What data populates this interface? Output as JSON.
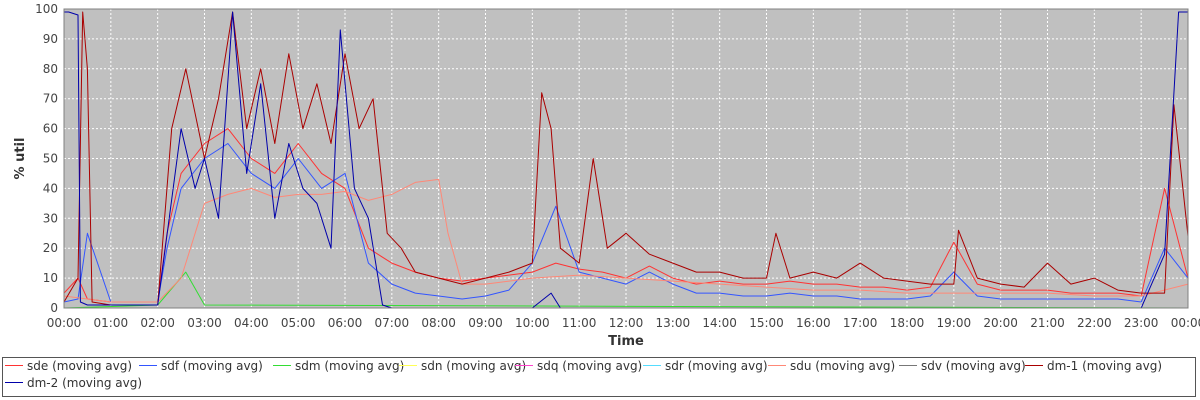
{
  "chart_data": {
    "type": "line",
    "xlabel": "Time",
    "ylabel": "% util",
    "ylim": [
      0,
      100
    ],
    "yticks": [
      0,
      10,
      20,
      30,
      40,
      50,
      60,
      70,
      80,
      90,
      100
    ],
    "xlim": [
      0,
      24
    ],
    "xticks": [
      "00:00",
      "01:00",
      "02:00",
      "03:00",
      "04:00",
      "05:00",
      "06:00",
      "07:00",
      "08:00",
      "09:00",
      "10:00",
      "11:00",
      "12:00",
      "13:00",
      "14:00",
      "15:00",
      "16:00",
      "17:00",
      "18:00",
      "19:00",
      "20:00",
      "21:00",
      "22:00",
      "23:00",
      "00:00"
    ],
    "grid": true,
    "legend_position": "bottom",
    "background": "#c0c0c0",
    "series": [
      {
        "name": "sde (moving avg)",
        "color": "#ff3333",
        "x": [
          0,
          0.3,
          0.5,
          1,
          2,
          2.2,
          2.5,
          3,
          3.5,
          4,
          4.5,
          5,
          5.5,
          6,
          6.5,
          7,
          7.5,
          8,
          8.5,
          9,
          9.5,
          10,
          10.5,
          11,
          11.5,
          12,
          12.5,
          13,
          13.5,
          14,
          14.5,
          15,
          15.5,
          16,
          16.5,
          17,
          17.5,
          18,
          18.5,
          19,
          19.5,
          20,
          20.5,
          21,
          21.5,
          22,
          22.5,
          23,
          23.5,
          24
        ],
        "values": [
          5,
          10,
          3,
          2,
          2,
          25,
          45,
          55,
          60,
          50,
          45,
          55,
          45,
          40,
          20,
          15,
          12,
          10,
          9,
          10,
          11,
          12,
          15,
          13,
          12,
          10,
          14,
          10,
          8,
          9,
          8,
          8,
          9,
          8,
          8,
          7,
          7,
          6,
          7,
          22,
          8,
          6,
          6,
          6,
          5,
          5,
          5,
          4,
          40,
          10
        ]
      },
      {
        "name": "sdf (moving avg)",
        "color": "#3355ff",
        "x": [
          0,
          0.3,
          0.5,
          1,
          2,
          2.2,
          2.5,
          3,
          3.5,
          4,
          4.5,
          5,
          5.5,
          6,
          6.5,
          7,
          7.5,
          8,
          8.5,
          9,
          9.5,
          10,
          10.5,
          11,
          11.5,
          12,
          12.5,
          13,
          13.5,
          14,
          14.5,
          15,
          15.5,
          16,
          16.5,
          17,
          17.5,
          18,
          18.5,
          19,
          19.5,
          20,
          20.5,
          21,
          21.5,
          22,
          22.5,
          23,
          23.5,
          24
        ],
        "values": [
          2,
          3,
          25,
          2,
          2,
          20,
          40,
          50,
          55,
          45,
          40,
          50,
          40,
          45,
          15,
          8,
          5,
          4,
          3,
          4,
          6,
          15,
          34,
          12,
          10,
          8,
          12,
          8,
          5,
          5,
          4,
          4,
          5,
          4,
          4,
          3,
          3,
          3,
          4,
          12,
          4,
          3,
          3,
          3,
          3,
          3,
          3,
          2,
          20,
          10
        ]
      },
      {
        "name": "sdm (moving avg)",
        "color": "#33dd33",
        "x": [
          0,
          2,
          2.6,
          3,
          24
        ],
        "values": [
          0,
          1,
          12,
          1,
          0
        ]
      },
      {
        "name": "sdn (moving avg)",
        "color": "#ffff55",
        "x": [
          0,
          24
        ],
        "values": [
          0,
          0
        ]
      },
      {
        "name": "sdq (moving avg)",
        "color": "#ff44cc",
        "x": [
          0,
          24
        ],
        "values": [
          0,
          0
        ]
      },
      {
        "name": "sdr (moving avg)",
        "color": "#55ddff",
        "x": [
          0,
          24
        ],
        "values": [
          0,
          0
        ]
      },
      {
        "name": "sdu (moving avg)",
        "color": "#ff8877",
        "x": [
          0,
          1,
          2,
          2.5,
          3,
          3.5,
          4,
          4.5,
          5,
          5.5,
          6,
          6.5,
          7,
          7.5,
          8,
          8.2,
          8.5,
          9,
          10,
          11,
          12,
          13,
          14,
          15,
          16,
          17,
          18,
          19,
          20,
          21,
          22,
          23,
          24
        ],
        "values": [
          4,
          2,
          2,
          10,
          35,
          38,
          40,
          37,
          38,
          38,
          39,
          36,
          38,
          42,
          43,
          25,
          8,
          8,
          10,
          11,
          10,
          9,
          8,
          7,
          6,
          6,
          5,
          5,
          5,
          5,
          4,
          4,
          8
        ]
      },
      {
        "name": "sdv (moving avg)",
        "color": "#777777",
        "x": [
          0,
          24
        ],
        "values": [
          0,
          0
        ]
      },
      {
        "name": "dm-1 (moving avg)",
        "color": "#aa0000",
        "x": [
          0,
          0.3,
          0.4,
          0.5,
          0.6,
          1,
          2,
          2.3,
          2.6,
          3,
          3.3,
          3.6,
          3.9,
          4.2,
          4.5,
          4.8,
          5.1,
          5.4,
          5.7,
          6,
          6.3,
          6.6,
          6.9,
          7.2,
          7.5,
          8,
          8.5,
          9,
          9.5,
          10,
          10.2,
          10.4,
          10.6,
          11,
          11.3,
          11.6,
          12,
          12.5,
          13,
          13.5,
          14,
          14.5,
          15,
          15.2,
          15.5,
          16,
          16.5,
          17,
          17.5,
          18,
          18.5,
          19,
          19.1,
          19.5,
          20,
          20.5,
          21,
          21.5,
          22,
          22.5,
          23,
          23.5,
          23.7,
          24
        ],
        "values": [
          2,
          10,
          99,
          80,
          2,
          1,
          1,
          60,
          80,
          50,
          70,
          99,
          60,
          80,
          55,
          85,
          60,
          75,
          55,
          85,
          60,
          70,
          25,
          20,
          12,
          10,
          8,
          10,
          12,
          15,
          72,
          60,
          20,
          15,
          50,
          20,
          25,
          18,
          15,
          12,
          12,
          10,
          10,
          25,
          10,
          12,
          10,
          15,
          10,
          9,
          8,
          8,
          26,
          10,
          8,
          7,
          15,
          8,
          10,
          6,
          5,
          5,
          68,
          24
        ]
      },
      {
        "name": "dm-2 (moving avg)",
        "color": "#0000aa",
        "x": [
          0,
          0.1,
          0.3,
          0.35,
          0.5,
          1,
          2,
          2.5,
          2.8,
          3,
          3.3,
          3.6,
          3.9,
          4.2,
          4.5,
          4.8,
          5.1,
          5.4,
          5.7,
          5.9,
          6.2,
          6.5,
          6.8,
          7,
          10,
          10.4,
          10.6,
          12,
          18,
          22,
          23,
          23.5,
          23.8,
          24
        ],
        "values": [
          99,
          99,
          98,
          2,
          1,
          1,
          1,
          60,
          40,
          50,
          30,
          99,
          45,
          75,
          30,
          55,
          40,
          35,
          20,
          93,
          40,
          30,
          1,
          0,
          0,
          5,
          0,
          0,
          0,
          0,
          0,
          18,
          99,
          99
        ]
      }
    ]
  }
}
